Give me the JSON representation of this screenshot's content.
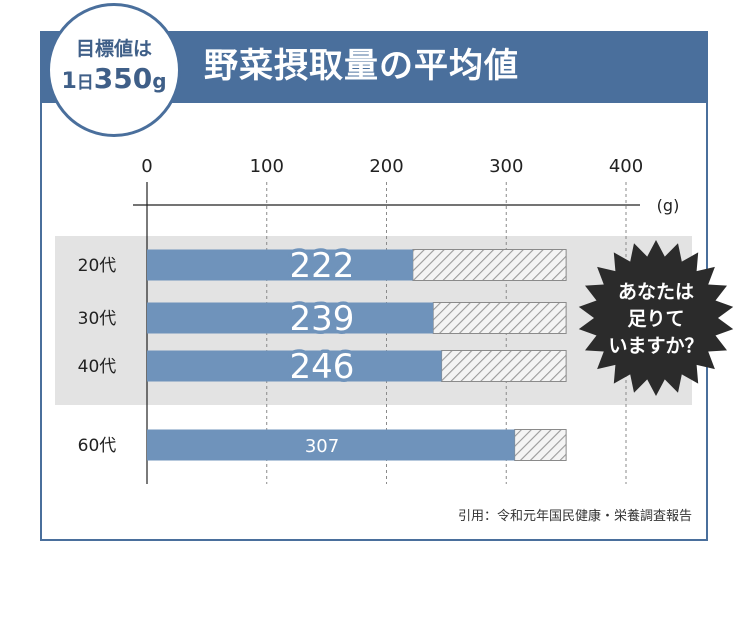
{
  "header": {
    "title": "野菜摂取量の平均値",
    "badge": {
      "line1": "目標値は",
      "line2_a": "1",
      "line2_b": "日",
      "line2_c": "350",
      "line2_d": "g"
    }
  },
  "source_note": "引用：令和元年国民健康・栄養調査報告",
  "callout": {
    "lines": [
      "あなたは",
      "足りて",
      "いますか？"
    ]
  },
  "colors": {
    "accent": "#4a6f9c",
    "bar": "#6f93bb",
    "highlight_band": "#e3e3e3",
    "hatch": "#9a9a9a",
    "callout": "#2b2b2b"
  },
  "chart_data": {
    "type": "bar",
    "orientation": "horizontal",
    "title": "野菜摂取量の平均値",
    "xlabel": "",
    "unit": "(g)",
    "x_ticks": [
      0,
      100,
      200,
      300,
      400
    ],
    "xlim": [
      0,
      400
    ],
    "target": 350,
    "grid": true,
    "categories": [
      "20代",
      "30代",
      "40代",
      "60代"
    ],
    "values": [
      222,
      239,
      246,
      307
    ],
    "value_labels": [
      "222",
      "239",
      "246",
      "307"
    ],
    "highlighted": [
      true,
      true,
      true,
      false
    ]
  }
}
